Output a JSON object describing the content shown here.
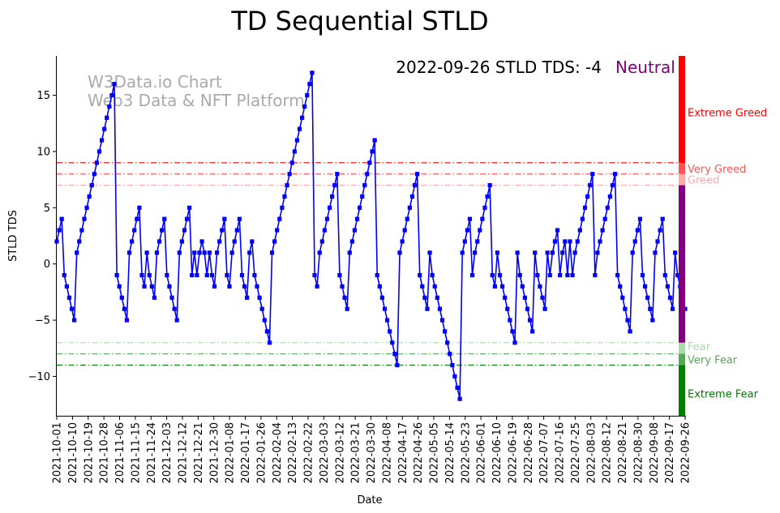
{
  "chart_data": {
    "type": "line",
    "title": "TD Sequential STLD",
    "xlabel": "Date",
    "ylabel": "STLD TDS",
    "ylim": [
      -13.5,
      18.5
    ],
    "yticks": [
      -10,
      -5,
      0,
      5,
      10,
      15
    ],
    "watermark": [
      "W3Data.io Chart",
      "Web3 Data & NFT Platform"
    ],
    "status": {
      "text": "2022-09-26 STLD TDS: -4",
      "label": "Neutral",
      "label_color": "#800080"
    },
    "x_ticks": [
      "2021-10-01",
      "2021-10-10",
      "2021-10-19",
      "2021-10-28",
      "2021-11-06",
      "2021-11-15",
      "2021-11-24",
      "2021-12-03",
      "2021-12-12",
      "2021-12-21",
      "2021-12-30",
      "2022-01-08",
      "2022-01-17",
      "2022-01-26",
      "2022-02-04",
      "2022-02-13",
      "2022-02-22",
      "2022-03-03",
      "2022-03-12",
      "2022-03-21",
      "2022-03-30",
      "2022-04-08",
      "2022-04-17",
      "2022-04-26",
      "2022-05-05",
      "2022-05-14",
      "2022-05-23",
      "2022-06-01",
      "2022-06-10",
      "2022-06-19",
      "2022-06-28",
      "2022-07-07",
      "2022-07-16",
      "2022-07-25",
      "2022-08-03",
      "2022-08-12",
      "2022-08-21",
      "2022-08-30",
      "2022-09-08",
      "2022-09-17",
      "2022-09-26"
    ],
    "reference_lines": [
      {
        "value": 9,
        "color": "#ff0000",
        "style": "dashdot"
      },
      {
        "value": 8,
        "color": "#ff5050",
        "style": "dashdot"
      },
      {
        "value": 7,
        "color": "#ffaaaa",
        "style": "dashdot"
      },
      {
        "value": -7,
        "color": "#a8dba8",
        "style": "dashdot"
      },
      {
        "value": -8,
        "color": "#55aa55",
        "style": "dashdot"
      },
      {
        "value": -9,
        "color": "#007700",
        "style": "dashdot"
      }
    ],
    "zones": [
      {
        "label": "Extreme Greed",
        "from": 9,
        "to": 18.5,
        "color": "#ff0000",
        "text_color": "#ff0000",
        "label_y": 13.5
      },
      {
        "label": "Very Greed",
        "from": 8,
        "to": 9,
        "color": "#ff5555",
        "text_color": "#ff5555",
        "label_y": 8.5
      },
      {
        "label": "Greed",
        "from": 7,
        "to": 8,
        "color": "#ffaaaa",
        "text_color": "#ffaaaa",
        "label_y": 7.5
      },
      {
        "label": "",
        "from": -7,
        "to": 7,
        "color": "#800080",
        "text_color": "#800080",
        "label_y": 0
      },
      {
        "label": "Fear",
        "from": -8,
        "to": -7,
        "color": "#a8dba8",
        "text_color": "#a8dba8",
        "label_y": -7.3
      },
      {
        "label": "Very Fear",
        "from": -9,
        "to": -8,
        "color": "#55aa55",
        "text_color": "#55aa55",
        "label_y": -8.5
      },
      {
        "label": "Extreme Fear",
        "from": -13.5,
        "to": -9,
        "color": "#008000",
        "text_color": "#008000",
        "label_y": -11.5
      }
    ],
    "series": [
      {
        "name": "STLD TDS",
        "color": "#0000ff",
        "start_date": "2021-10-01",
        "end_date": "2022-09-26",
        "values": [
          2,
          3,
          4,
          -1,
          -2,
          -3,
          -4,
          -5,
          1,
          2,
          3,
          4,
          5,
          6,
          7,
          8,
          9,
          10,
          11,
          12,
          13,
          14,
          15,
          16,
          -1,
          -2,
          -3,
          -4,
          -5,
          1,
          2,
          3,
          4,
          5,
          -1,
          -2,
          1,
          -1,
          -2,
          -3,
          1,
          2,
          3,
          4,
          -1,
          -2,
          -3,
          -4,
          -5,
          1,
          2,
          3,
          4,
          5,
          -1,
          1,
          -1,
          1,
          2,
          1,
          -1,
          1,
          -1,
          -2,
          1,
          2,
          3,
          4,
          -1,
          -2,
          1,
          2,
          3,
          4,
          -1,
          -2,
          -3,
          1,
          2,
          -1,
          -2,
          -3,
          -4,
          -5,
          -6,
          -7,
          1,
          2,
          3,
          4,
          5,
          6,
          7,
          8,
          9,
          10,
          11,
          12,
          13,
          14,
          15,
          16,
          17,
          -1,
          -2,
          1,
          2,
          3,
          4,
          5,
          6,
          7,
          8,
          -1,
          -2,
          -3,
          -4,
          1,
          2,
          3,
          4,
          5,
          6,
          7,
          8,
          9,
          10,
          11,
          -1,
          -2,
          -3,
          -4,
          -5,
          -6,
          -7,
          -8,
          -9,
          1,
          2,
          3,
          4,
          5,
          6,
          7,
          8,
          -1,
          -2,
          -3,
          -4,
          1,
          -1,
          -2,
          -3,
          -4,
          -5,
          -6,
          -7,
          -8,
          -9,
          -10,
          -11,
          -12,
          1,
          2,
          3,
          4,
          -1,
          1,
          2,
          3,
          4,
          5,
          6,
          7,
          -1,
          -2,
          1,
          -1,
          -2,
          -3,
          -4,
          -5,
          -6,
          -7,
          1,
          -1,
          -2,
          -3,
          -4,
          -5,
          -6,
          1,
          -1,
          -2,
          -3,
          -4,
          1,
          -1,
          1,
          2,
          3,
          -1,
          1,
          2,
          -1,
          2,
          -1,
          1,
          2,
          3,
          4,
          5,
          6,
          7,
          8,
          -1,
          1,
          2,
          3,
          4,
          5,
          6,
          7,
          8,
          -1,
          -2,
          -3,
          -4,
          -5,
          -6,
          1,
          2,
          3,
          4,
          -1,
          -2,
          -3,
          -4,
          -5,
          1,
          2,
          3,
          4,
          -1,
          -2,
          -3,
          -4,
          1,
          -1,
          -2,
          -3,
          -4
        ]
      }
    ]
  }
}
